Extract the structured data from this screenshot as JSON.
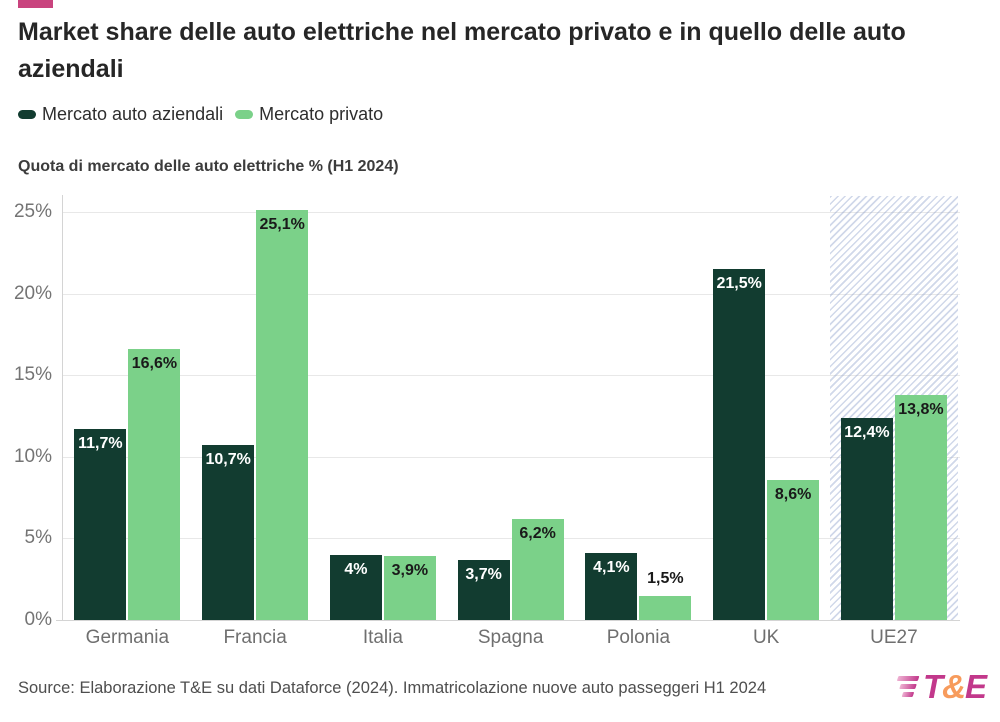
{
  "brand": {
    "accent_color": "#c9447e",
    "logo": {
      "t": "T",
      "amp": "&",
      "e": "E",
      "pink": "#c2388b",
      "orange": "#f79b5c"
    }
  },
  "title": "Market share delle auto elettriche nel mercato privato e in quello delle auto aziendali",
  "subtitle": "Quota di mercato delle auto elettriche % (H1 2024)",
  "source": "Source: Elaborazione T&E su dati Dataforce (2024). Immatricolazione nuove auto passeggeri H1 2024",
  "chart_data": {
    "type": "bar",
    "title": "Market share delle auto elettriche nel mercato privato e in quello delle auto aziendali",
    "subtitle": "Quota di mercato delle auto elettriche % (H1 2024)",
    "categories": [
      "Germania",
      "Francia",
      "Italia",
      "Spagna",
      "Polonia",
      "UK",
      "UE27"
    ],
    "series": [
      {
        "name": "Mercato auto aziendali",
        "color": "#123c30",
        "label_color": "#ffffff",
        "values": [
          11.7,
          10.7,
          4,
          3.7,
          4.1,
          21.5,
          12.4
        ],
        "labels": [
          "11,7%",
          "10,7%",
          "4%",
          "3,7%",
          "4,1%",
          "21,5%",
          "12,4%"
        ]
      },
      {
        "name": "Mercato privato",
        "color": "#7bd189",
        "label_color": "#1a1a1a",
        "values": [
          16.6,
          25.1,
          3.9,
          6.2,
          1.5,
          8.6,
          13.8
        ],
        "labels": [
          "16,6%",
          "25,1%",
          "3,9%",
          "6,2%",
          "1,5%",
          "8,6%",
          "13,8%"
        ]
      }
    ],
    "ylim": [
      0,
      25
    ],
    "y_tick_values": [
      0,
      5,
      10,
      15,
      20,
      25
    ],
    "y_tick_labels": [
      "0%",
      "5%",
      "10%",
      "15%",
      "20%",
      "25%"
    ],
    "grid": "horizontal",
    "legend_position": "top-left",
    "highlighted_category": "UE27",
    "highlight_style": "diagonal-hatch"
  }
}
